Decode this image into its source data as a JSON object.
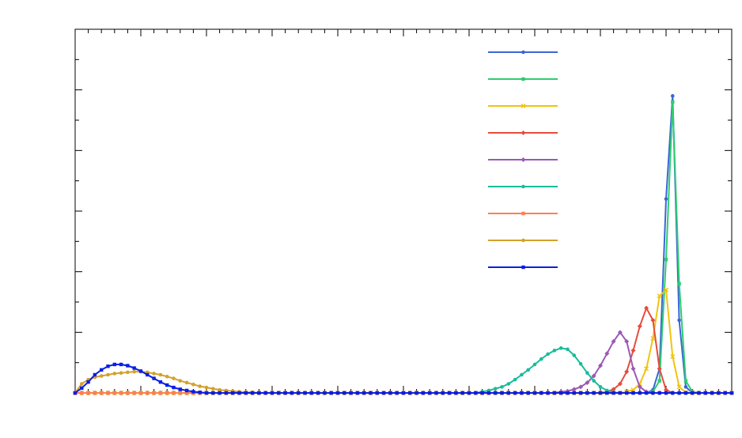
{
  "chart_data": {
    "type": "line",
    "x": [
      0,
      1,
      2,
      3,
      4,
      5,
      6,
      7,
      8,
      9,
      10,
      11,
      12,
      13,
      14,
      15,
      16,
      17,
      18,
      19,
      20,
      21,
      22,
      23,
      24,
      25,
      26,
      27,
      28,
      29,
      30,
      31,
      32,
      33,
      34,
      35,
      36,
      37,
      38,
      39,
      40,
      41,
      42,
      43,
      44,
      45,
      46,
      47,
      48,
      49,
      50,
      51,
      52,
      53,
      54,
      55,
      56,
      57,
      58,
      59,
      60,
      61,
      62,
      63,
      64,
      65,
      66,
      67,
      68,
      69,
      70,
      71,
      72,
      73,
      74,
      75,
      76,
      77,
      78,
      79,
      80,
      81,
      82,
      83,
      84,
      85,
      86,
      87,
      88,
      89,
      90,
      91,
      92,
      93,
      94,
      95,
      96,
      97,
      98,
      99,
      100
    ],
    "xlim": [
      0,
      100
    ],
    "xticks": [
      0,
      10,
      20,
      30,
      40,
      50,
      60,
      70,
      80,
      90,
      100
    ],
    "xminorticks": [
      2,
      4,
      6,
      8,
      12,
      14,
      16,
      18,
      22,
      24,
      26,
      28,
      32,
      34,
      36,
      38,
      42,
      44,
      46,
      48,
      52,
      54,
      56,
      58,
      62,
      64,
      66,
      68,
      72,
      74,
      76,
      78,
      82,
      84,
      86,
      88,
      92,
      94,
      96,
      98
    ],
    "ylim": [
      0,
      6
    ],
    "yticks": [
      0,
      1,
      2,
      3,
      4,
      5,
      6
    ],
    "yminorticks": [
      0.5,
      1.5,
      2.5,
      3.5,
      4.5,
      5.5
    ],
    "legend": "upper right",
    "series": [
      {
        "color": "#3a66d6",
        "marker": "circle",
        "values": [
          0,
          0,
          0,
          0,
          0,
          0,
          0,
          0,
          0,
          0,
          0,
          0,
          0,
          0,
          0,
          0,
          0,
          0,
          0,
          0,
          0,
          0,
          0,
          0,
          0,
          0,
          0,
          0,
          0,
          0,
          0,
          0,
          0,
          0,
          0,
          0,
          0,
          0,
          0,
          0,
          0,
          0,
          0,
          0,
          0,
          0,
          0,
          0,
          0,
          0,
          0,
          0,
          0,
          0,
          0,
          0,
          0,
          0,
          0,
          0,
          0,
          0,
          0,
          0,
          0,
          0,
          0,
          0,
          0,
          0,
          0,
          0,
          0,
          0,
          0,
          0,
          0,
          0,
          0,
          0,
          0,
          0,
          0,
          0,
          0,
          0,
          0,
          0,
          0.05,
          0.4,
          3.2,
          4.9,
          1.2,
          0.1,
          0,
          0,
          0,
          0,
          0,
          0,
          0
        ]
      },
      {
        "color": "#2ecc71",
        "marker": "square",
        "values": [
          0,
          0,
          0,
          0,
          0,
          0,
          0,
          0,
          0,
          0,
          0,
          0,
          0,
          0,
          0,
          0,
          0,
          0,
          0,
          0,
          0,
          0,
          0,
          0,
          0,
          0,
          0,
          0,
          0,
          0,
          0,
          0,
          0,
          0,
          0,
          0,
          0,
          0,
          0,
          0,
          0,
          0,
          0,
          0,
          0,
          0,
          0,
          0,
          0,
          0,
          0,
          0,
          0,
          0,
          0,
          0,
          0,
          0,
          0,
          0,
          0,
          0,
          0,
          0,
          0,
          0,
          0,
          0,
          0,
          0,
          0,
          0,
          0,
          0,
          0,
          0,
          0,
          0,
          0,
          0,
          0,
          0,
          0,
          0,
          0,
          0,
          0,
          0,
          0.02,
          0.2,
          2.2,
          4.8,
          1.8,
          0.2,
          0.02,
          0,
          0,
          0,
          0,
          0,
          0
        ]
      },
      {
        "color": "#f1c40f",
        "marker": "cross",
        "values": [
          0,
          0,
          0,
          0,
          0,
          0,
          0,
          0,
          0,
          0,
          0,
          0,
          0,
          0,
          0,
          0,
          0,
          0,
          0,
          0,
          0,
          0,
          0,
          0,
          0,
          0,
          0,
          0,
          0,
          0,
          0,
          0,
          0,
          0,
          0,
          0,
          0,
          0,
          0,
          0,
          0,
          0,
          0,
          0,
          0,
          0,
          0,
          0,
          0,
          0,
          0,
          0,
          0,
          0,
          0,
          0,
          0,
          0,
          0,
          0,
          0,
          0,
          0,
          0,
          0,
          0,
          0,
          0,
          0,
          0,
          0,
          0,
          0,
          0,
          0,
          0,
          0,
          0,
          0,
          0,
          0,
          0,
          0,
          0,
          0.02,
          0.05,
          0.15,
          0.4,
          0.9,
          1.6,
          1.7,
          0.6,
          0.1,
          0.01,
          0,
          0,
          0,
          0,
          0,
          0,
          0
        ]
      },
      {
        "color": "#e74c3c",
        "marker": "diamond",
        "values": [
          0,
          0,
          0,
          0,
          0,
          0,
          0,
          0,
          0,
          0,
          0,
          0,
          0,
          0,
          0,
          0,
          0,
          0,
          0,
          0,
          0,
          0,
          0,
          0,
          0,
          0,
          0,
          0,
          0,
          0,
          0,
          0,
          0,
          0,
          0,
          0,
          0,
          0,
          0,
          0,
          0,
          0,
          0,
          0,
          0,
          0,
          0,
          0,
          0,
          0,
          0,
          0,
          0,
          0,
          0,
          0,
          0,
          0,
          0,
          0,
          0,
          0,
          0,
          0,
          0,
          0,
          0,
          0,
          0,
          0,
          0,
          0,
          0,
          0,
          0,
          0,
          0,
          0,
          0,
          0,
          0,
          0.02,
          0.06,
          0.15,
          0.35,
          0.7,
          1.1,
          1.4,
          1.2,
          0.4,
          0.05,
          0,
          0,
          0,
          0,
          0,
          0,
          0,
          0,
          0,
          0
        ]
      },
      {
        "color": "#9b59b6",
        "marker": "diamond",
        "values": [
          0,
          0,
          0,
          0,
          0,
          0,
          0,
          0,
          0,
          0,
          0,
          0,
          0,
          0,
          0,
          0,
          0,
          0,
          0,
          0,
          0,
          0,
          0,
          0,
          0,
          0,
          0,
          0,
          0,
          0,
          0,
          0,
          0,
          0,
          0,
          0,
          0,
          0,
          0,
          0,
          0,
          0,
          0,
          0,
          0,
          0,
          0,
          0,
          0,
          0,
          0,
          0,
          0,
          0,
          0,
          0,
          0,
          0,
          0,
          0,
          0,
          0,
          0,
          0,
          0,
          0,
          0,
          0,
          0,
          0,
          0,
          0,
          0,
          0,
          0.02,
          0.03,
          0.06,
          0.1,
          0.17,
          0.28,
          0.45,
          0.65,
          0.85,
          1.0,
          0.85,
          0.4,
          0.1,
          0.02,
          0,
          0,
          0,
          0,
          0,
          0,
          0,
          0,
          0,
          0,
          0,
          0,
          0
        ]
      },
      {
        "color": "#1abc9c",
        "marker": "circle",
        "values": [
          0,
          0,
          0,
          0,
          0,
          0,
          0,
          0,
          0,
          0,
          0,
          0,
          0,
          0,
          0,
          0,
          0,
          0,
          0,
          0,
          0,
          0,
          0,
          0,
          0,
          0,
          0,
          0,
          0,
          0,
          0,
          0,
          0,
          0,
          0,
          0,
          0,
          0,
          0,
          0,
          0,
          0,
          0,
          0,
          0,
          0,
          0,
          0,
          0,
          0,
          0,
          0,
          0,
          0,
          0,
          0,
          0,
          0,
          0,
          0,
          0,
          0,
          0.02,
          0.04,
          0.07,
          0.1,
          0.15,
          0.22,
          0.3,
          0.38,
          0.47,
          0.56,
          0.64,
          0.7,
          0.74,
          0.72,
          0.62,
          0.48,
          0.33,
          0.2,
          0.1,
          0.04,
          0.01,
          0,
          0,
          0,
          0,
          0,
          0,
          0,
          0,
          0,
          0,
          0,
          0,
          0,
          0,
          0,
          0,
          0,
          0
        ]
      },
      {
        "color": "#ff7f50",
        "marker": "square",
        "values": [
          0,
          0,
          0,
          0,
          0,
          0,
          0,
          0,
          0,
          0,
          0,
          0,
          0,
          0,
          0,
          0,
          0,
          0,
          0,
          0,
          0,
          0,
          0,
          0,
          0,
          0,
          0,
          0,
          0,
          0,
          0,
          0,
          0,
          0,
          0,
          0,
          0,
          0,
          0,
          0,
          0,
          0,
          0,
          0,
          0,
          0,
          0,
          0,
          0,
          0,
          0,
          0,
          0,
          0,
          0,
          0,
          0,
          0,
          0,
          0,
          0,
          0,
          0,
          0,
          0,
          0,
          0,
          0,
          0,
          0,
          0,
          0,
          0,
          0,
          0,
          0,
          0,
          0,
          0,
          0,
          0,
          0,
          0,
          0,
          0,
          0,
          0,
          0,
          0,
          0,
          0,
          0,
          0,
          0,
          0,
          0,
          0,
          0,
          0,
          0,
          0
        ]
      },
      {
        "color": "#d4a12a",
        "marker": "circle",
        "values": [
          0,
          0.15,
          0.22,
          0.26,
          0.28,
          0.3,
          0.32,
          0.33,
          0.34,
          0.35,
          0.35,
          0.34,
          0.32,
          0.3,
          0.27,
          0.24,
          0.2,
          0.17,
          0.14,
          0.11,
          0.09,
          0.07,
          0.05,
          0.04,
          0.03,
          0.02,
          0.01,
          0.01,
          0,
          0,
          0,
          0,
          0,
          0,
          0,
          0,
          0,
          0,
          0,
          0,
          0,
          0,
          0,
          0,
          0,
          0,
          0,
          0,
          0,
          0,
          0,
          0,
          0,
          0,
          0,
          0,
          0,
          0,
          0,
          0,
          0,
          0,
          0,
          0,
          0,
          0,
          0,
          0,
          0,
          0,
          0,
          0,
          0,
          0,
          0,
          0,
          0,
          0,
          0,
          0,
          0,
          0,
          0,
          0,
          0,
          0,
          0,
          0,
          0,
          0,
          0,
          0,
          0,
          0,
          0,
          0,
          0,
          0,
          0,
          0,
          0
        ]
      },
      {
        "color": "#0a1ee6",
        "marker": "square",
        "values": [
          0,
          0.08,
          0.18,
          0.3,
          0.38,
          0.44,
          0.47,
          0.47,
          0.45,
          0.41,
          0.36,
          0.3,
          0.24,
          0.18,
          0.13,
          0.09,
          0.06,
          0.04,
          0.02,
          0.01,
          0,
          0,
          0,
          0,
          0,
          0,
          0,
          0,
          0,
          0,
          0,
          0,
          0,
          0,
          0,
          0,
          0,
          0,
          0,
          0,
          0,
          0,
          0,
          0,
          0,
          0,
          0,
          0,
          0,
          0,
          0,
          0,
          0,
          0,
          0,
          0,
          0,
          0,
          0,
          0,
          0,
          0,
          0,
          0,
          0,
          0,
          0,
          0,
          0,
          0,
          0,
          0,
          0,
          0,
          0,
          0,
          0,
          0,
          0,
          0,
          0,
          0,
          0,
          0,
          0,
          0,
          0,
          0,
          0,
          0,
          0,
          0,
          0,
          0,
          0,
          0,
          0,
          0,
          0,
          0,
          0
        ]
      }
    ]
  }
}
